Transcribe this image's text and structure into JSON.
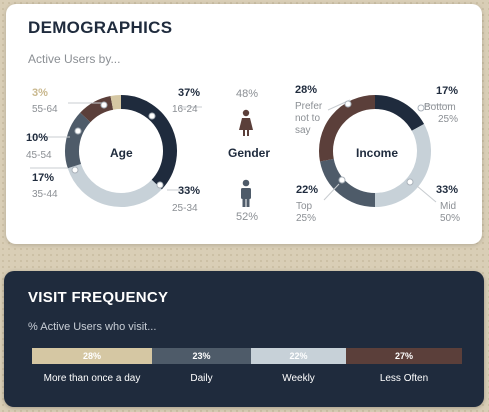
{
  "colors": {
    "navy": "#1f2b3d",
    "slate": "#4e5b69",
    "light": "#c7d1d8",
    "tan": "#d5c7a3",
    "brown": "#5b3f3a",
    "female": "#5b3f3a",
    "male": "#4e5b69"
  },
  "demographics": {
    "title": "DEMOGRAPHICS",
    "subtitle": "Active Users by...",
    "age": {
      "center_label": "Age",
      "segments": [
        {
          "name": "16-24",
          "percent": "37%"
        },
        {
          "name": "25-34",
          "percent": "33%"
        },
        {
          "name": "35-44",
          "percent": "17%"
        },
        {
          "name": "45-54",
          "percent": "10%"
        },
        {
          "name": "55-64",
          "percent": "3%"
        }
      ]
    },
    "gender": {
      "center_label": "Gender",
      "female_percent": "48%",
      "male_percent": "52%",
      "female_icon": "female-person-icon",
      "male_icon": "male-person-icon"
    },
    "income": {
      "center_label": "Income",
      "segments": [
        {
          "name": "Bottom",
          "sub": "25%",
          "percent": "17%"
        },
        {
          "name": "Mid",
          "sub": "50%",
          "percent": "33%"
        },
        {
          "name": "Top",
          "sub": "25%",
          "percent": "22%"
        },
        {
          "name": "Prefer not to say",
          "sub": "",
          "percent": "28%"
        }
      ]
    }
  },
  "visit_frequency": {
    "title": "VISIT FREQUENCY",
    "subtitle": "% Active Users who visit...",
    "bars": [
      {
        "label": "More than once a day",
        "percent": "28%"
      },
      {
        "label": "Daily",
        "percent": "23%"
      },
      {
        "label": "Weekly",
        "percent": "22%"
      },
      {
        "label": "Less Often",
        "percent": "27%"
      }
    ]
  },
  "chart_data": [
    {
      "type": "pie",
      "center": "Age",
      "categories": [
        "16-24",
        "25-34",
        "35-44",
        "45-54",
        "55-64"
      ],
      "values": [
        37,
        33,
        17,
        10,
        3
      ],
      "colors": [
        "#1f2b3d",
        "#c7d1d8",
        "#4e5b69",
        "#5b3f3a",
        "#d5c7a3"
      ]
    },
    {
      "type": "pie",
      "center": "Income",
      "categories": [
        "Bottom 25%",
        "Mid 50%",
        "Top 25%",
        "Prefer not to say"
      ],
      "values": [
        17,
        33,
        22,
        28
      ],
      "colors": [
        "#1f2b3d",
        "#c7d1d8",
        "#4e5b69",
        "#5b3f3a"
      ]
    },
    {
      "type": "bar",
      "center": "Gender",
      "categories": [
        "Female",
        "Male"
      ],
      "values": [
        48,
        52
      ]
    },
    {
      "type": "bar",
      "title": "VISIT FREQUENCY",
      "categories": [
        "More than once a day",
        "Daily",
        "Weekly",
        "Less Often"
      ],
      "values": [
        28,
        23,
        22,
        27
      ],
      "colors": [
        "#d5c7a3",
        "#4e5b69",
        "#c7d1d8",
        "#5b3f3a"
      ]
    }
  ]
}
